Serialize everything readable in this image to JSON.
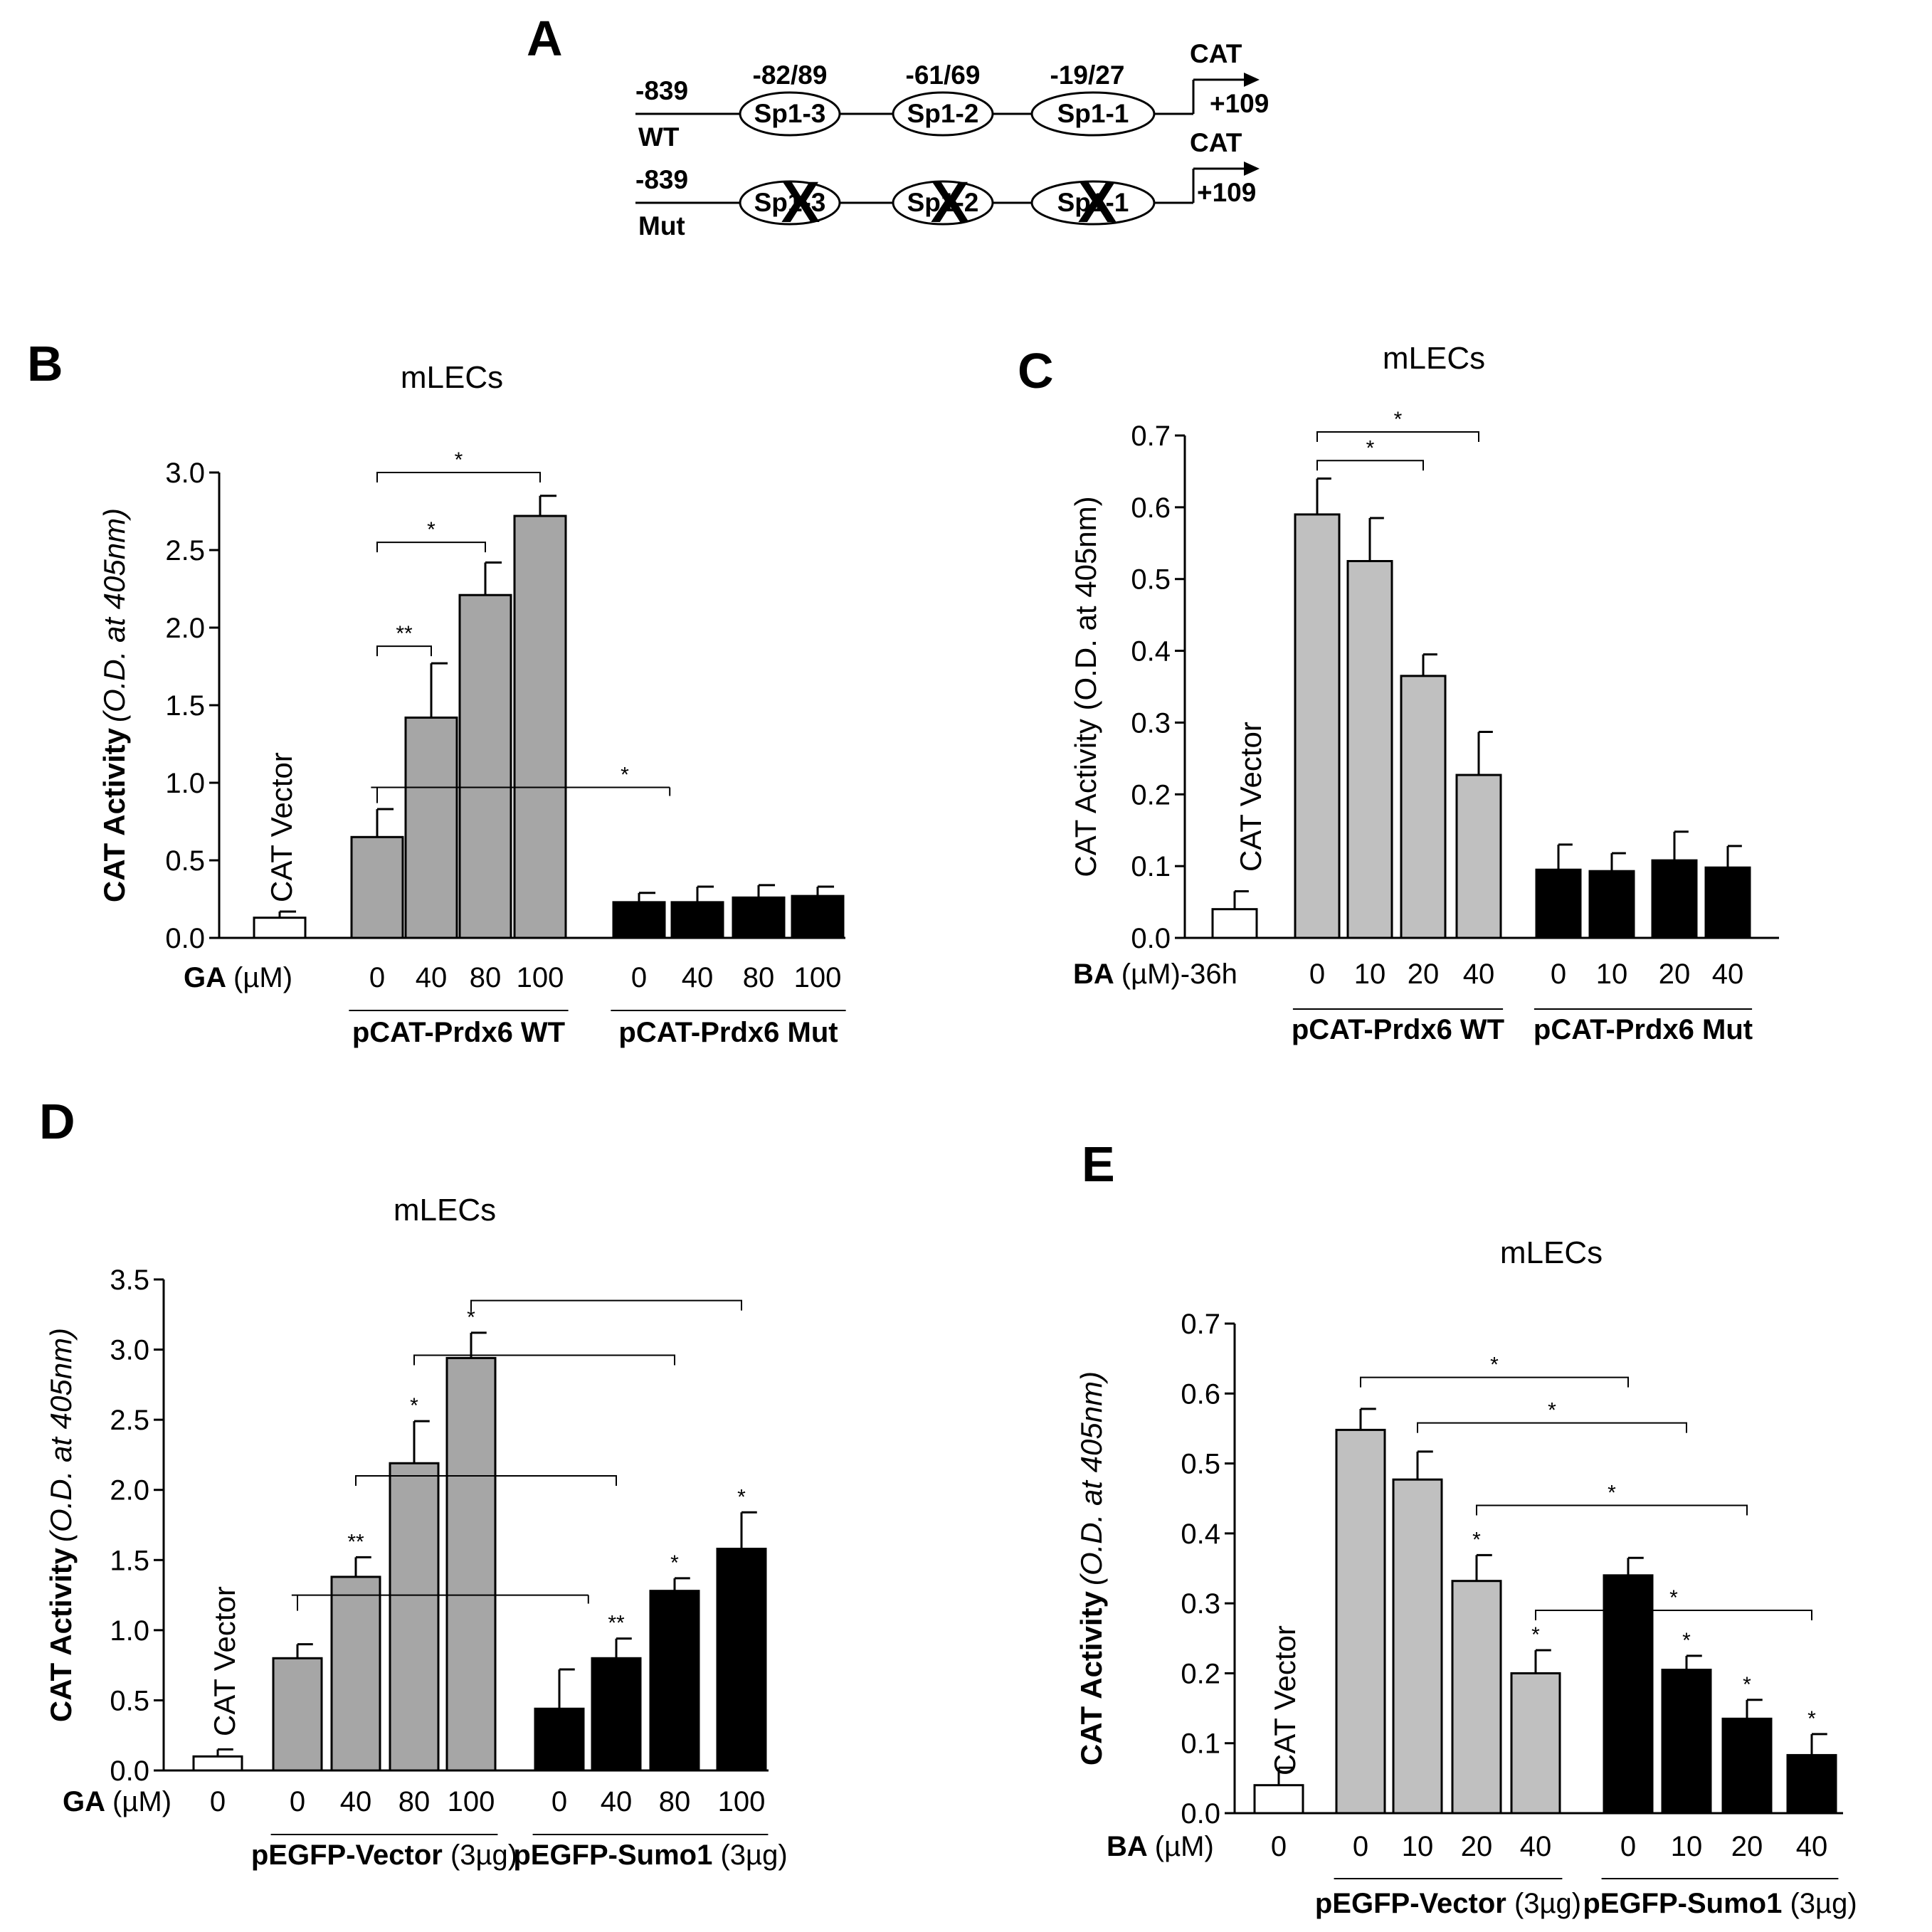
{
  "figure": {
    "panel_labels": [
      "A",
      "B",
      "C",
      "D",
      "E"
    ]
  },
  "diagram_a": {
    "rows": [
      {
        "label": "WT",
        "start": "-839",
        "sites": [
          "Sp1-3",
          "Sp1-2",
          "Sp1-1"
        ],
        "end_label": "CAT",
        "end_pos": "+109",
        "mutated": false
      },
      {
        "label": "Mut",
        "start": "-839",
        "sites": [
          "Sp1-3",
          "Sp1-2",
          "Sp1-1"
        ],
        "end_label": "CAT",
        "end_pos": "+109",
        "mutated": true
      }
    ],
    "site_positions": [
      "-82/89",
      "-61/69",
      "-19/27"
    ],
    "mutation_mark": "X"
  },
  "chart_data": [
    {
      "panel": "B",
      "type": "bar",
      "title": "mLECs",
      "ylabel_bold": "CAT Activity",
      "ylabel_italic": "(O.D. at 405nm)",
      "ylim": [
        0,
        3.0
      ],
      "yticks": [
        "0.0",
        "0.5",
        "1.0",
        "1.5",
        "2.0",
        "2.5",
        "3.0"
      ],
      "yticks_values": [
        0,
        0.5,
        1.0,
        1.5,
        2.0,
        2.5,
        3.0
      ],
      "axis_label_main": "GA",
      "axis_label_unit": "(µM)",
      "vector_label": "CAT Vector",
      "bars": [
        {
          "group": "vector",
          "label": "",
          "value": 0.13,
          "error": 0.04,
          "fill": "#ffffff"
        },
        {
          "group": "pCAT-Prdx6 WT",
          "label": "0",
          "value": 0.65,
          "error": 0.18,
          "fill": "#a6a6a6"
        },
        {
          "group": "pCAT-Prdx6 WT",
          "label": "40",
          "value": 1.42,
          "error": 0.35,
          "fill": "#a6a6a6"
        },
        {
          "group": "pCAT-Prdx6 WT",
          "label": "80",
          "value": 2.21,
          "error": 0.21,
          "fill": "#a6a6a6"
        },
        {
          "group": "pCAT-Prdx6 WT",
          "label": "100",
          "value": 2.72,
          "error": 0.13,
          "fill": "#a6a6a6"
        },
        {
          "group": "pCAT-Prdx6 Mut",
          "label": "0",
          "value": 0.23,
          "error": 0.06,
          "fill": "#000000"
        },
        {
          "group": "pCAT-Prdx6 Mut",
          "label": "40",
          "value": 0.23,
          "error": 0.1,
          "fill": "#000000"
        },
        {
          "group": "pCAT-Prdx6 Mut",
          "label": "80",
          "value": 0.26,
          "error": 0.08,
          "fill": "#000000"
        },
        {
          "group": "pCAT-Prdx6 Mut",
          "label": "100",
          "value": 0.27,
          "error": 0.06,
          "fill": "#000000"
        }
      ],
      "groups": [
        {
          "name": "pCAT-Prdx6 WT",
          "name_bold": "pCAT-Prdx6 WT",
          "name_rest": "",
          "from": 1,
          "to": 4
        },
        {
          "name": "pCAT-Prdx6 Mut",
          "name_bold": "pCAT-Prdx6 Mut",
          "name_rest": "",
          "from": 5,
          "to": 8
        }
      ],
      "brackets": [
        {
          "from": 1,
          "to": 4,
          "y": 3.0,
          "label": "*",
          "style": "bracket"
        },
        {
          "from": 1,
          "to": 3,
          "y": 2.55,
          "label": "*",
          "style": "bracket"
        },
        {
          "from": 1,
          "to": 2,
          "y": 1.88,
          "label": "**",
          "style": "bracket"
        },
        {
          "from": 1,
          "to": 5,
          "y": 0.97,
          "label": "*",
          "style": "span"
        }
      ],
      "bar_stars": []
    },
    {
      "panel": "C",
      "type": "bar",
      "title": "mLECs",
      "ylabel_bold": "",
      "ylabel_italic": "",
      "ylabel_plain": "CAT Activity (O.D. at 405nm)",
      "ylim": [
        0,
        0.7
      ],
      "yticks": [
        "0.0",
        "0.1",
        "0.2",
        "0.3",
        "0.4",
        "0.5",
        "0.6",
        "0.7"
      ],
      "yticks_values": [
        0,
        0.1,
        0.2,
        0.3,
        0.4,
        0.5,
        0.6,
        0.7
      ],
      "axis_label_main": "BA",
      "axis_label_unit": "(µM)-36h",
      "vector_label": "CAT Vector",
      "bars": [
        {
          "group": "vector",
          "label": "",
          "value": 0.04,
          "error": 0.025,
          "fill": "#ffffff"
        },
        {
          "group": "pCAT-Prdx6 WT",
          "label": "0",
          "value": 0.59,
          "error": 0.05,
          "fill": "#c0c0c0"
        },
        {
          "group": "pCAT-Prdx6 WT",
          "label": "10",
          "value": 0.525,
          "error": 0.06,
          "fill": "#c0c0c0"
        },
        {
          "group": "pCAT-Prdx6 WT",
          "label": "20",
          "value": 0.365,
          "error": 0.03,
          "fill": "#c0c0c0"
        },
        {
          "group": "pCAT-Prdx6 WT",
          "label": "40",
          "value": 0.227,
          "error": 0.06,
          "fill": "#c0c0c0"
        },
        {
          "group": "pCAT-Prdx6 Mut",
          "label": "0",
          "value": 0.095,
          "error": 0.035,
          "fill": "#000000"
        },
        {
          "group": "pCAT-Prdx6 Mut",
          "label": "10",
          "value": 0.093,
          "error": 0.025,
          "fill": "#000000"
        },
        {
          "group": "pCAT-Prdx6 Mut",
          "label": "20",
          "value": 0.108,
          "error": 0.04,
          "fill": "#000000"
        },
        {
          "group": "pCAT-Prdx6 Mut",
          "label": "40",
          "value": 0.098,
          "error": 0.03,
          "fill": "#000000"
        }
      ],
      "groups": [
        {
          "name": "pCAT-Prdx6 WT",
          "name_bold": "pCAT-Prdx6 WT",
          "name_rest": "",
          "from": 1,
          "to": 4
        },
        {
          "name": "pCAT-Prdx6 Mut",
          "name_bold": "pCAT-Prdx6 Mut",
          "name_rest": "",
          "from": 5,
          "to": 8
        }
      ],
      "brackets": [
        {
          "from": 1,
          "to": 4,
          "y": 0.705,
          "label": "*",
          "style": "bracket"
        },
        {
          "from": 1,
          "to": 3,
          "y": 0.665,
          "label": "*",
          "style": "bracket"
        }
      ],
      "bar_stars": []
    },
    {
      "panel": "D",
      "type": "bar",
      "title": "mLECs",
      "ylabel_bold": "CAT Activity",
      "ylabel_italic": "(O.D. at 405nm)",
      "ylim": [
        0,
        3.5
      ],
      "yticks": [
        "0.0",
        "0.5",
        "1.0",
        "1.5",
        "2.0",
        "2.5",
        "3.0",
        "3.5"
      ],
      "yticks_values": [
        0,
        0.5,
        1.0,
        1.5,
        2.0,
        2.5,
        3.0,
        3.5
      ],
      "axis_label_main": "GA",
      "axis_label_unit": "(µM)",
      "vector_label": "CAT Vector",
      "vector_tick": "0",
      "bars": [
        {
          "group": "vector",
          "label": "0",
          "value": 0.1,
          "error": 0.05,
          "fill": "#ffffff"
        },
        {
          "group": "pEGFP-Vector",
          "label": "0",
          "value": 0.8,
          "error": 0.1,
          "fill": "#a6a6a6"
        },
        {
          "group": "pEGFP-Vector",
          "label": "40",
          "value": 1.38,
          "error": 0.14,
          "fill": "#a6a6a6"
        },
        {
          "group": "pEGFP-Vector",
          "label": "80",
          "value": 2.19,
          "error": 0.3,
          "fill": "#a6a6a6"
        },
        {
          "group": "pEGFP-Vector",
          "label": "100",
          "value": 2.94,
          "error": 0.18,
          "fill": "#a6a6a6"
        },
        {
          "group": "pEGFP-Sumo1",
          "label": "0",
          "value": 0.44,
          "error": 0.28,
          "fill": "#000000"
        },
        {
          "group": "pEGFP-Sumo1",
          "label": "40",
          "value": 0.8,
          "error": 0.14,
          "fill": "#000000"
        },
        {
          "group": "pEGFP-Sumo1",
          "label": "80",
          "value": 1.28,
          "error": 0.09,
          "fill": "#000000"
        },
        {
          "group": "pEGFP-Sumo1",
          "label": "100",
          "value": 1.58,
          "error": 0.26,
          "fill": "#000000"
        }
      ],
      "groups": [
        {
          "name": "pEGFP-Vector (3µg)",
          "name_bold": "pEGFP-Vector",
          "name_rest": " (3µg)",
          "from": 1,
          "to": 4
        },
        {
          "name": "pEGFP-Sumo1 (3µg)",
          "name_bold": "pEGFP-Sumo1",
          "name_rest": " (3µg)",
          "from": 5,
          "to": 8
        }
      ],
      "brackets": [
        {
          "from": 4,
          "to": 8,
          "y": 3.35,
          "label": "",
          "style": "bracket"
        },
        {
          "from": 3,
          "to": 7,
          "y": 2.96,
          "label": "",
          "style": "bracket"
        },
        {
          "from": 2,
          "to": 6,
          "y": 2.1,
          "label": "",
          "style": "bracket"
        },
        {
          "from": 1,
          "to": 5,
          "y": 1.25,
          "label": "",
          "style": "span"
        }
      ],
      "bar_stars": [
        {
          "bar": 2,
          "label": "**"
        },
        {
          "bar": 3,
          "label": "*"
        },
        {
          "bar": 4,
          "label": "*"
        },
        {
          "bar": 6,
          "label": "**"
        },
        {
          "bar": 7,
          "label": "*"
        },
        {
          "bar": 8,
          "label": "*"
        }
      ]
    },
    {
      "panel": "E",
      "type": "bar",
      "title": "mLECs",
      "ylabel_bold": "CAT Activity",
      "ylabel_italic": "(O.D. at 405nm)",
      "ylim": [
        0,
        0.7
      ],
      "yticks": [
        "0.0",
        "0.1",
        "0.2",
        "0.3",
        "0.4",
        "0.5",
        "0.6",
        "0.7"
      ],
      "yticks_values": [
        0,
        0.1,
        0.2,
        0.3,
        0.4,
        0.5,
        0.6,
        0.7
      ],
      "axis_label_main": "BA",
      "axis_label_unit": "(µM)",
      "vector_label": "CAT Vector",
      "vector_tick": "0",
      "bars": [
        {
          "group": "vector",
          "label": "0",
          "value": 0.04,
          "error": 0.025,
          "fill": "#ffffff"
        },
        {
          "group": "pEGFP-Vector",
          "label": "0",
          "value": 0.548,
          "error": 0.03,
          "fill": "#c0c0c0"
        },
        {
          "group": "pEGFP-Vector",
          "label": "10",
          "value": 0.477,
          "error": 0.04,
          "fill": "#c0c0c0"
        },
        {
          "group": "pEGFP-Vector",
          "label": "20",
          "value": 0.332,
          "error": 0.037,
          "fill": "#c0c0c0"
        },
        {
          "group": "pEGFP-Vector",
          "label": "40",
          "value": 0.2,
          "error": 0.033,
          "fill": "#c0c0c0"
        },
        {
          "group": "pEGFP-Sumo1",
          "label": "0",
          "value": 0.34,
          "error": 0.025,
          "fill": "#000000"
        },
        {
          "group": "pEGFP-Sumo1",
          "label": "10",
          "value": 0.205,
          "error": 0.02,
          "fill": "#000000"
        },
        {
          "group": "pEGFP-Sumo1",
          "label": "20",
          "value": 0.135,
          "error": 0.027,
          "fill": "#000000"
        },
        {
          "group": "pEGFP-Sumo1",
          "label": "40",
          "value": 0.083,
          "error": 0.03,
          "fill": "#000000"
        }
      ],
      "groups": [
        {
          "name": "pEGFP-Vector (3µg)",
          "name_bold": "pEGFP-Vector",
          "name_rest": " (3µg)",
          "from": 1,
          "to": 4
        },
        {
          "name": "pEGFP-Sumo1 (3µg)",
          "name_bold": "pEGFP-Sumo1",
          "name_rest": " (3µg)",
          "from": 5,
          "to": 8
        }
      ],
      "brackets": [
        {
          "from": 1,
          "to": 5,
          "y": 0.623,
          "label": "*",
          "style": "bracket"
        },
        {
          "from": 2,
          "to": 6,
          "y": 0.558,
          "label": "*",
          "style": "bracket"
        },
        {
          "from": 3,
          "to": 7,
          "y": 0.44,
          "label": "*",
          "style": "bracket"
        },
        {
          "from": 4,
          "to": 8,
          "y": 0.29,
          "label": "*",
          "style": "bracket"
        }
      ],
      "bar_stars": [
        {
          "bar": 3,
          "label": "*"
        },
        {
          "bar": 4,
          "label": "*"
        },
        {
          "bar": 6,
          "label": "*"
        },
        {
          "bar": 7,
          "label": "*"
        },
        {
          "bar": 8,
          "label": "*"
        }
      ]
    }
  ]
}
